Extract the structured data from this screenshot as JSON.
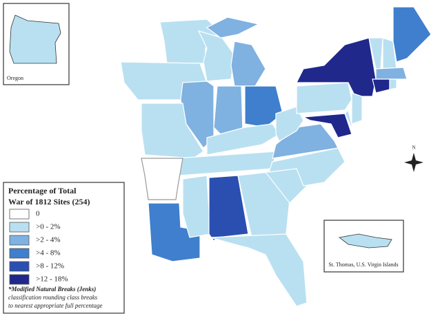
{
  "legend": {
    "title": [
      "Percentage of Total",
      "War of 1812 Sites (254)"
    ],
    "classes": [
      {
        "label": "0",
        "color": "#ffffff"
      },
      {
        "label": ">0 - 2%",
        "color": "#b9e0f1"
      },
      {
        "label": ">2 - 4%",
        "color": "#7fb1e1"
      },
      {
        "label": ">4 - 8%",
        "color": "#3f7fcd"
      },
      {
        "label": ">8 - 12%",
        "color": "#2b4fb1"
      },
      {
        "label": ">12 - 18%",
        "color": "#20288c"
      }
    ],
    "note": [
      "*Modified Natural Breaks (Jenks)",
      "classification rounding class breaks",
      "to nearest appropriate full percentage"
    ]
  },
  "insets": {
    "oregon": "Oregon",
    "virgin_islands": "St. Thomas, U.S. Virgin Islands"
  },
  "compass": "N"
}
